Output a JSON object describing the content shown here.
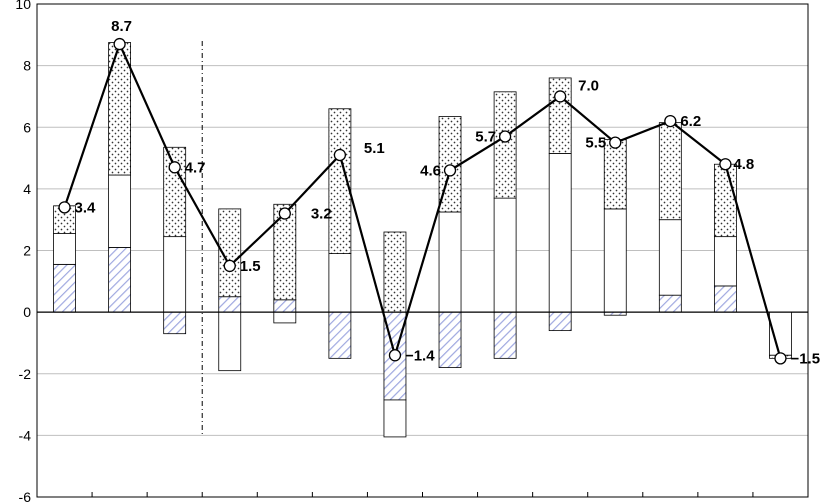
{
  "chart_data": {
    "type": "bar",
    "ylim": [
      -6,
      10
    ],
    "y_ticks": [
      -6,
      -4,
      -2,
      0,
      2,
      4,
      6,
      8,
      10
    ],
    "y_tick_labels": [
      "-6",
      "-4",
      "-2",
      "0",
      "2",
      "4",
      "6",
      "8",
      "10"
    ],
    "grid": true,
    "divider_after_index": 2.5,
    "colors": {
      "hatched": "#9fa8e0",
      "dotted": "#333333",
      "outline": "#000000",
      "grid": "#bfbfbf",
      "line": "#000000"
    },
    "series": [
      {
        "style": "hatched",
        "values": [
          1.55,
          2.1,
          -0.7,
          0.5,
          0.4,
          -1.5,
          -2.85,
          -1.8,
          -1.5,
          -0.6,
          -0.1,
          0.55,
          0.85,
          0
        ]
      },
      {
        "style": "blank",
        "values": [
          1.0,
          2.35,
          2.45,
          -1.9,
          -0.35,
          1.9,
          -1.2,
          3.25,
          3.7,
          5.15,
          3.35,
          2.45,
          1.6,
          -1.4
        ]
      },
      {
        "style": "dotted",
        "values": [
          0.9,
          4.3,
          2.9,
          2.85,
          3.1,
          4.7,
          2.6,
          3.1,
          3.45,
          2.45,
          2.25,
          3.15,
          2.35,
          -0.1
        ]
      }
    ],
    "line": {
      "values": [
        3.4,
        8.7,
        4.7,
        1.5,
        3.2,
        5.1,
        -1.4,
        4.6,
        5.7,
        7.0,
        5.5,
        6.2,
        4.8,
        -1.5
      ],
      "labels": [
        "3.4",
        "8.7",
        "4.7",
        "1.5",
        "3.2",
        "5.1",
        "−1.4",
        "4.6",
        "5.7",
        "7.0",
        "5.5",
        "6.2",
        "4.8",
        "−1.5"
      ],
      "label_pos": [
        "right",
        "top",
        "right",
        "right",
        "right",
        "right",
        "right",
        "left",
        "left",
        "right",
        "left",
        "right",
        "right",
        "right"
      ]
    }
  }
}
